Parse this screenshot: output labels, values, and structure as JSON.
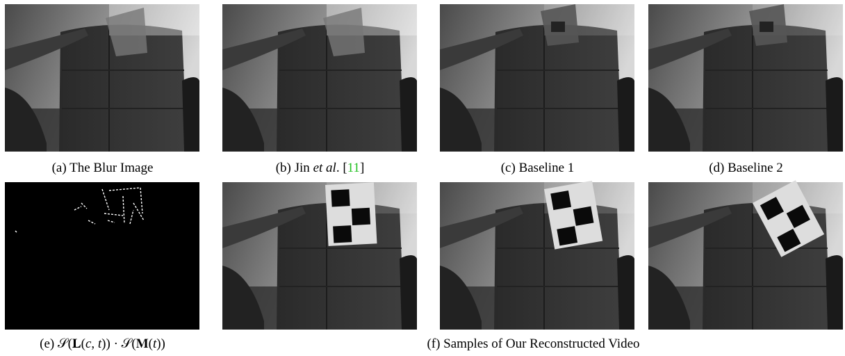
{
  "figure": {
    "top_row": [
      {
        "caption": [
          "(a) The Blur Image"
        ]
      },
      {
        "caption": [
          "(b) Jin ",
          "et al",
          ". [",
          "11",
          "]"
        ]
      },
      {
        "caption": [
          "(c) Baseline 1"
        ]
      },
      {
        "caption": [
          "(d) Baseline 2"
        ]
      }
    ],
    "bottom_row": [
      {
        "caption": [
          "(e) 𝒮(𝐋(",
          "c",
          ", ",
          "t",
          ")) · 𝒮(𝐌(",
          "t",
          "))"
        ]
      },
      {
        "caption": [
          "(f) Samples of Our Reconstructed Video"
        ]
      }
    ]
  }
}
